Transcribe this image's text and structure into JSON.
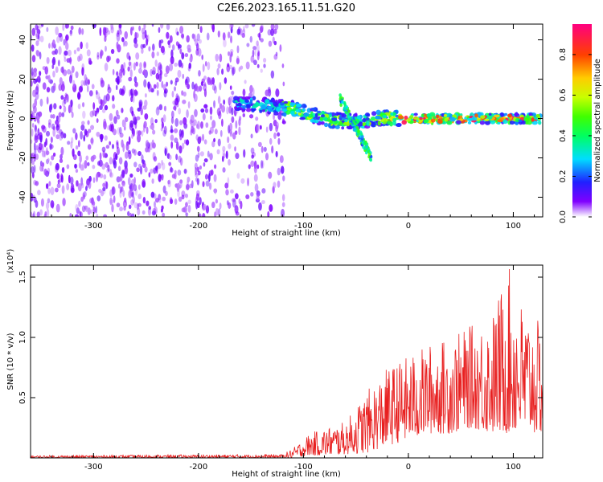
{
  "chart_data": [
    {
      "type": "heatmap",
      "title": "C2E6.2023.165.11.51.G20",
      "xlabel": "Height of straight line (km)",
      "ylabel": "Frequency (Hz)",
      "xlim": [
        -360,
        128
      ],
      "ylim": [
        -50,
        48
      ],
      "xticks": [
        -300,
        -200,
        -100,
        0,
        100
      ],
      "yticks": [
        -40,
        -20,
        0,
        20,
        40
      ],
      "colorbar": {
        "label": "Normalized spectral amplitude",
        "range": [
          0.0,
          0.95
        ],
        "ticks": [
          "0.0",
          "0.2",
          "0.4",
          "0.6",
          "0.8"
        ],
        "tick_values": [
          0.0,
          0.2,
          0.4,
          0.6,
          0.8
        ]
      },
      "features": [
        {
          "name": "broadband noise",
          "x_range": [
            -360,
            -118
          ],
          "freq_range": [
            -50,
            48
          ],
          "amplitude": 0.08
        },
        {
          "name": "main echo track",
          "x_range": [
            -165,
            128
          ],
          "center_freq_start": 8,
          "center_freq_end": 0,
          "peak_amplitude": 0.95
        },
        {
          "name": "secondary branch",
          "x_range": [
            -65,
            -35
          ],
          "freq_range": [
            -25,
            12
          ],
          "amplitude": 0.35
        }
      ]
    },
    {
      "type": "line",
      "xlabel": "Height of straight line (km)",
      "ylabel": "SNR (10 * v/v)",
      "y_multiplier": "(x10⁴)",
      "xlim": [
        -360,
        128
      ],
      "ylim": [
        0,
        1.6
      ],
      "xticks": [
        -300,
        -200,
        -100,
        0,
        100
      ],
      "yticks": [
        "0.5",
        "1.0",
        "1.5"
      ],
      "ytick_values": [
        0.5,
        1.0,
        1.5
      ],
      "series": [
        {
          "name": "SNR",
          "color": "#e82020",
          "envelope": {
            "x": [
              -360,
              -120,
              -110,
              -95,
              -80,
              -60,
              -40,
              -20,
              0,
              20,
              40,
              60,
              80,
              95,
              110,
              128
            ],
            "min": [
              0.0,
              0.0,
              0.0,
              0.02,
              0.02,
              0.03,
              0.04,
              0.1,
              0.15,
              0.2,
              0.2,
              0.25,
              0.2,
              0.2,
              0.2,
              0.2
            ],
            "max": [
              0.02,
              0.03,
              0.08,
              0.2,
              0.25,
              0.3,
              0.55,
              0.75,
              0.85,
              0.95,
              1.0,
              1.1,
              1.2,
              1.6,
              1.25,
              1.1
            ]
          }
        }
      ]
    }
  ]
}
